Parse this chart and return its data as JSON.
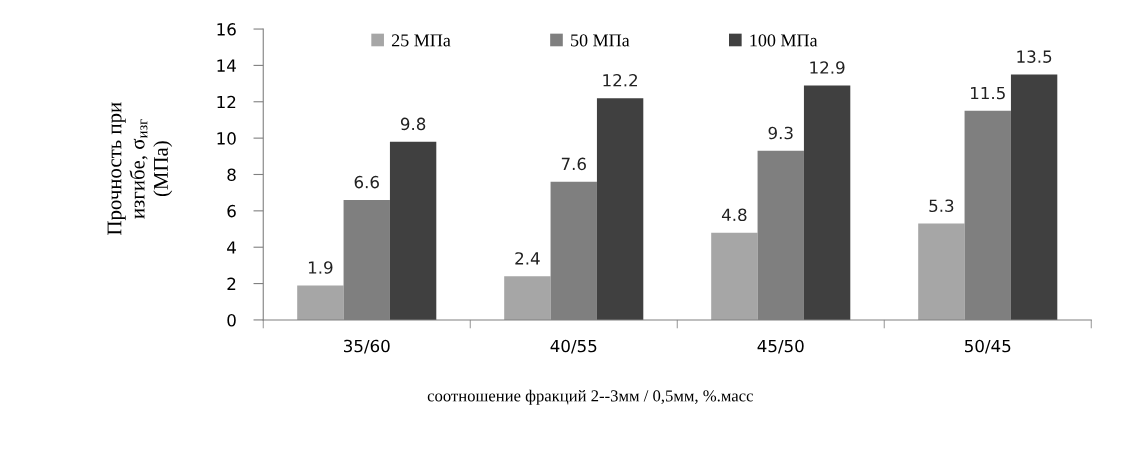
{
  "chart_data": {
    "type": "bar",
    "categories": [
      "35/60",
      "40/55",
      "45/50",
      "50/45"
    ],
    "series": [
      {
        "name": "25 МПа",
        "color": "#a6a6a6",
        "values": [
          1.9,
          2.4,
          4.8,
          5.3
        ]
      },
      {
        "name": "50 МПа",
        "color": "#7f7f7f",
        "values": [
          6.6,
          7.6,
          9.3,
          11.5
        ]
      },
      {
        "name": "100 МПа",
        "color": "#404040",
        "values": [
          9.8,
          12.2,
          12.9,
          13.5
        ]
      }
    ],
    "xlabel": "соотношение фракций 2--3мм / 0,5мм, %.масс",
    "ylabel": "Прочность при\nизгибе, σ$_{изг}$\n(МПа)",
    "ylim": [
      0,
      16
    ],
    "yticks": [
      0,
      2,
      4,
      6,
      8,
      10,
      12,
      14,
      16
    ],
    "data_labels": true,
    "legend": "top",
    "grid": false
  }
}
